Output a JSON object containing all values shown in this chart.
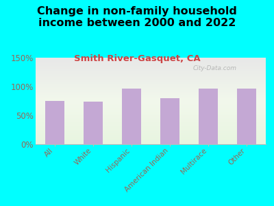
{
  "title": "Change in non-family household\nincome between 2000 and 2022",
  "subtitle": "Smith River-Gasquet, CA",
  "categories": [
    "All",
    "White",
    "Hispanic",
    "American Indian",
    "Multirace",
    "Other"
  ],
  "values": [
    75,
    74,
    97,
    80,
    97,
    97
  ],
  "bar_color": "#c4a8d4",
  "background_color": "#00ffff",
  "title_color": "#000000",
  "subtitle_color": "#cc4444",
  "tick_color": "#996655",
  "ylim": [
    0,
    150
  ],
  "yticks": [
    0,
    50,
    100,
    150
  ],
  "ytick_labels": [
    "0%",
    "50%",
    "100%",
    "150%"
  ],
  "watermark": "City-Data.com",
  "title_fontsize": 11.5,
  "subtitle_fontsize": 9.5
}
